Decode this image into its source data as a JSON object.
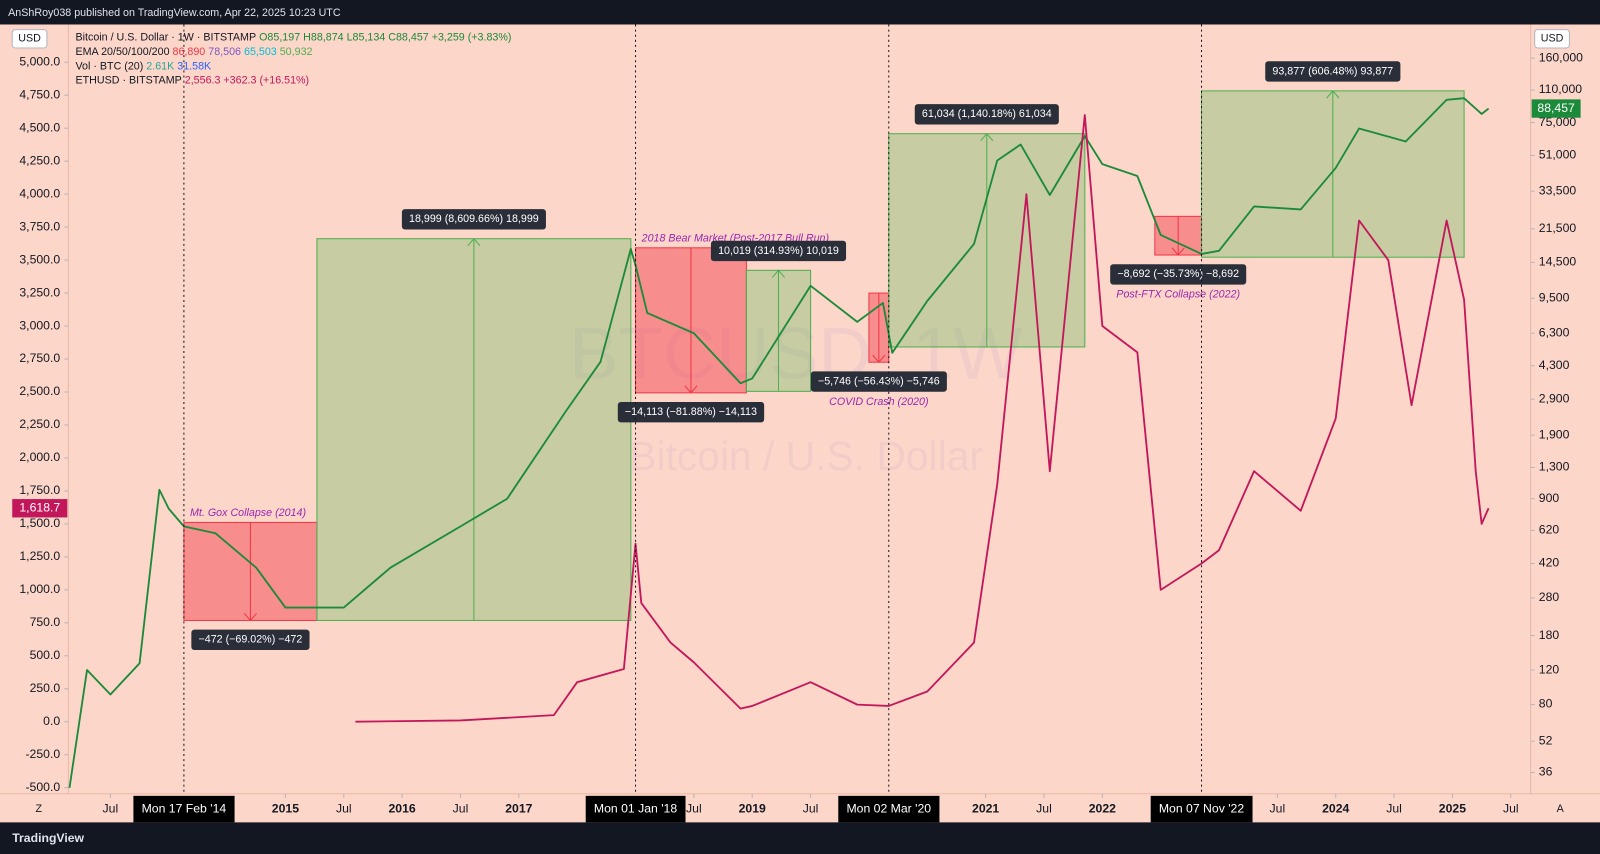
{
  "header": {
    "published": "AnShRoy038 published on TradingView.com, Apr 22, 2025 10:23 UTC"
  },
  "chart_data": {
    "type": "line",
    "title": "Bitcoin / U.S. Dollar",
    "watermark": "BTCUSD, 1W",
    "currency": "USD",
    "axis_buttons": [
      "Z",
      "A"
    ],
    "legend": {
      "ohlc": "O85,197 H88,874 L85,134 C88,457 +3,259 (+3.83%)",
      "ema_name": "EMA 20/50/100/200",
      "ema_values": [
        {
          "text": "86,890",
          "color": "#f23645"
        },
        {
          "text": "78,506",
          "color": "#7e57c2"
        },
        {
          "text": "65,503",
          "color": "#00bcd4"
        },
        {
          "text": "50,932",
          "color": "#4caf50"
        }
      ],
      "vol_name": "Vol · BTC (20)",
      "vol_values": [
        {
          "text": "2.61K",
          "color": "#26a69a"
        },
        {
          "text": "31.58K",
          "color": "#2962ff"
        }
      ],
      "eth_change": "2,556.3 +362.3 (+16.51%)"
    },
    "xlim": [
      2013.14,
      2025.67
    ],
    "xticks": [
      {
        "value": 2013.5,
        "label": "Jul"
      },
      2015,
      {
        "value": 2015.5,
        "label": "Jul"
      },
      2016,
      {
        "value": 2016.5,
        "label": "Jul"
      },
      2017,
      {
        "value": 2018.5,
        "label": "Jul"
      },
      2019,
      {
        "value": 2019.5,
        "label": "Jul"
      },
      2021,
      {
        "value": 2021.5,
        "label": "Jul"
      },
      2022,
      {
        "value": 2023.5,
        "label": "Jul"
      },
      2024,
      {
        "value": 2024.5,
        "label": "Jul"
      },
      2025,
      {
        "value": 2025.5,
        "label": "Jul"
      }
    ],
    "ylim": [
      -546,
      5286
    ],
    "yticks": [
      {
        "value": 5000,
        "label": "5,000.0"
      },
      {
        "value": 4750,
        "label": "4,750.0"
      },
      {
        "value": 4500,
        "label": "4,500.0"
      },
      {
        "value": 4250,
        "label": "4,250.0"
      },
      {
        "value": 4000,
        "label": "4,000.0"
      },
      {
        "value": 3750,
        "label": "3,750.0"
      },
      {
        "value": 3500,
        "label": "3,500.0"
      },
      {
        "value": 3250,
        "label": "3,250.0"
      },
      {
        "value": 3000,
        "label": "3,000.0"
      },
      {
        "value": 2750,
        "label": "2,750.0"
      },
      {
        "value": 2500,
        "label": "2,500.0"
      },
      {
        "value": 2250,
        "label": "2,250.0"
      },
      {
        "value": 2000,
        "label": "2,000.0"
      },
      {
        "value": 1750,
        "label": "1,750.0"
      },
      {
        "value": 1500,
        "label": "1,500.0"
      },
      {
        "value": 1250,
        "label": "1,250.0"
      },
      {
        "value": 1000,
        "label": "1,000.0"
      },
      {
        "value": 750,
        "label": "750.0"
      },
      {
        "value": 500,
        "label": "500.0"
      },
      {
        "value": 250,
        "label": "250.0"
      },
      {
        "value": 0,
        "label": "0.0"
      },
      {
        "value": -250,
        "label": "-250.0"
      },
      {
        "value": -500,
        "label": "-500.0"
      }
    ],
    "y2lim": [
      28,
      237700
    ],
    "y2log": true,
    "y2ticks": [
      {
        "value": 160000,
        "label": "160,000"
      },
      {
        "value": 110000,
        "label": "110,000"
      },
      {
        "value": 75000,
        "label": "75,000"
      },
      {
        "value": 51000,
        "label": "51,000"
      },
      {
        "value": 33500,
        "label": "33,500"
      },
      {
        "value": 21500,
        "label": "21,500"
      },
      {
        "value": 14500,
        "label": "14,500"
      },
      {
        "value": 9500,
        "label": "9,500"
      },
      {
        "value": 6300,
        "label": "6,300"
      },
      {
        "value": 4300,
        "label": "4,300"
      },
      {
        "value": 2900,
        "label": "2,900"
      },
      {
        "value": 1900,
        "label": "1,900"
      },
      {
        "value": 1300,
        "label": "1,300"
      },
      900,
      620,
      420,
      280,
      180,
      120,
      80,
      52,
      36
    ],
    "grid": false,
    "series": [
      {
        "name": "Bitcoin / U.S. Dollar · 1W · BITSTAMP",
        "color": "#1b8a3a",
        "axis": "y2",
        "x": [
          2013.15,
          2013.3,
          2013.5,
          2013.75,
          2013.92,
          2014.0,
          2014.13,
          2014.4,
          2014.75,
          2015.0,
          2015.5,
          2015.9,
          2016.5,
          2016.9,
          2017.4,
          2017.7,
          2017.96,
          2018.0,
          2018.1,
          2018.5,
          2018.9,
          2019.0,
          2019.5,
          2019.9,
          2020.12,
          2020.2,
          2020.5,
          2020.9,
          2021.1,
          2021.3,
          2021.55,
          2021.85,
          2022.0,
          2022.3,
          2022.5,
          2022.85,
          2023.0,
          2023.3,
          2023.7,
          2024.0,
          2024.2,
          2024.6,
          2024.95,
          2025.1,
          2025.25,
          2025.31
        ],
        "values": [
          30,
          120,
          90,
          130,
          1000,
          800,
          650,
          600,
          400,
          250,
          250,
          400,
          650,
          900,
          2500,
          4500,
          17000,
          14000,
          8000,
          6300,
          3500,
          3700,
          11000,
          7200,
          9000,
          5000,
          9200,
          18000,
          48000,
          58000,
          32000,
          64000,
          46000,
          40000,
          20000,
          16000,
          16600,
          28000,
          27000,
          44000,
          70000,
          60000,
          98000,
          100000,
          83000,
          88457
        ],
        "last_label": "88,457"
      },
      {
        "name": "ETHUSD · BITSTAMP",
        "color": "#c2185b",
        "axis": "y",
        "x": [
          2015.6,
          2016.5,
          2017.3,
          2017.5,
          2017.9,
          2018.0,
          2018.05,
          2018.3,
          2018.5,
          2018.9,
          2019.0,
          2019.5,
          2019.9,
          2020.17,
          2020.5,
          2020.9,
          2021.1,
          2021.35,
          2021.55,
          2021.85,
          2022.0,
          2022.3,
          2022.5,
          2022.85,
          2023.0,
          2023.3,
          2023.7,
          2024.0,
          2024.2,
          2024.45,
          2024.65,
          2024.95,
          2025.1,
          2025.2,
          2025.25,
          2025.31
        ],
        "values": [
          1,
          10,
          50,
          300,
          400,
          1350,
          900,
          600,
          450,
          100,
          120,
          300,
          130,
          120,
          230,
          600,
          1800,
          4000,
          1900,
          4600,
          3000,
          2800,
          1000,
          1200,
          1300,
          1900,
          1600,
          2300,
          3800,
          3500,
          2400,
          3800,
          3200,
          1900,
          1500,
          1618.7
        ],
        "last_label": "1,618.7"
      }
    ],
    "ranges": [
      {
        "x": [
          2014.13,
          2015.27
        ],
        "y": [
          215,
          681
        ],
        "direction": "down",
        "label": "−472 (−69.02%) −472",
        "note": "Mt. Gox Collapse (2014)"
      },
      {
        "x": [
          2015.27,
          2017.96
        ],
        "y": [
          215,
          19150
        ],
        "direction": "up",
        "label": "18,999 (8,609.66%) 18,999"
      },
      {
        "x": [
          2018.0,
          2018.95
        ],
        "y": [
          3125,
          17200
        ],
        "direction": "down",
        "label": "−14,113 (−81.88%) −14,113",
        "note": "2018 Bear Market (Post-2017 Bull Run)"
      },
      {
        "x": [
          2018.95,
          2019.5
        ],
        "y": [
          3180,
          13200
        ],
        "direction": "up",
        "label": "10,019 (314.93%) 10,019"
      },
      {
        "x": [
          2020.0,
          2020.17
        ],
        "y": [
          4480,
          10100
        ],
        "direction": "down",
        "label": "−5,746 (−56.43%) −5,746",
        "note": "COVID Crash (2020)"
      },
      {
        "x": [
          2020.17,
          2021.85
        ],
        "y": [
          5360,
          65800
        ],
        "direction": "up",
        "label": "61,034 (1,140.18%) 61,034"
      },
      {
        "x": [
          2022.45,
          2022.85
        ],
        "y": [
          15800,
          24900
        ],
        "direction": "down",
        "label": "−8,692 (−35.73%) −8,692",
        "note": "Post-FTX Collapse (2022)"
      },
      {
        "x": [
          2022.85,
          2025.1
        ],
        "y": [
          15400,
          108900
        ],
        "direction": "up",
        "label": "93,877 (606.48%) 93,877"
      }
    ],
    "markers": [
      {
        "x": 2014.13,
        "label": "Mon 17 Feb '14"
      },
      {
        "x": 2018.0,
        "label": "Mon 01 Jan '18"
      },
      {
        "x": 2020.17,
        "label": "Mon 02 Mar '20"
      },
      {
        "x": 2022.85,
        "label": "Mon 07 Nov '22"
      }
    ]
  },
  "footer": {
    "brand": "TradingView"
  }
}
